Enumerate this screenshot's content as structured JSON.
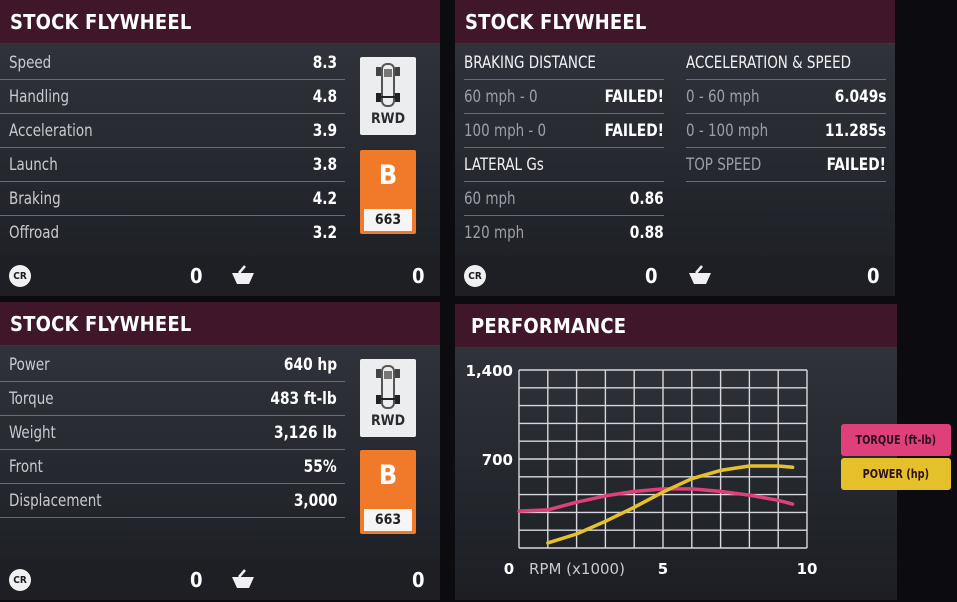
{
  "colors": {
    "header_bg": "#40162b",
    "class_orange": "#f07a2a",
    "torque_pink": "#e0407a",
    "power_yellow": "#e6c02a"
  },
  "panel_stats": {
    "title": "STOCK FLYWHEEL",
    "rows": [
      {
        "label": "Speed",
        "value": "8.3"
      },
      {
        "label": "Handling",
        "value": "4.8"
      },
      {
        "label": "Acceleration",
        "value": "3.9"
      },
      {
        "label": "Launch",
        "value": "3.8"
      },
      {
        "label": "Braking",
        "value": "4.2"
      },
      {
        "label": "Offroad",
        "value": "3.2"
      }
    ],
    "drivetrain": "RWD",
    "class_letter": "B",
    "class_pi": "663",
    "cr_icon_text": "CR",
    "cr_value": "0",
    "basket_value": "0"
  },
  "panel_tests": {
    "title": "STOCK FLYWHEEL",
    "braking_heading": "BRAKING DISTANCE",
    "braking_rows": [
      {
        "label": "60 mph - 0",
        "value": "FAILED!"
      },
      {
        "label": "100 mph - 0",
        "value": "FAILED!"
      }
    ],
    "lateral_heading": "LATERAL Gs",
    "lateral_rows": [
      {
        "label": "60 mph",
        "value": "0.86"
      },
      {
        "label": "120 mph",
        "value": "0.88"
      }
    ],
    "accel_heading": "ACCELERATION & SPEED",
    "accel_rows": [
      {
        "label": "0 - 60 mph",
        "value": "6.049s"
      },
      {
        "label": "0 - 100 mph",
        "value": "11.285s"
      },
      {
        "label": "TOP SPEED",
        "value": "FAILED!"
      }
    ],
    "cr_icon_text": "CR",
    "cr_value": "0",
    "basket_value": "0"
  },
  "panel_specs": {
    "title": "STOCK FLYWHEEL",
    "rows": [
      {
        "label": "Power",
        "value": "640 hp"
      },
      {
        "label": "Torque",
        "value": "483 ft-lb"
      },
      {
        "label": "Weight",
        "value": "3,126 lb"
      },
      {
        "label": "Front",
        "value": "55%"
      },
      {
        "label": "Displacement",
        "value": "3,000"
      }
    ],
    "drivetrain": "RWD",
    "class_letter": "B",
    "class_pi": "663",
    "cr_icon_text": "CR",
    "cr_value": "0",
    "basket_value": "0"
  },
  "panel_performance": {
    "title": "PERFORMANCE",
    "legend_torque": "TORQUE (ft-lb)",
    "legend_power": "POWER (hp)"
  },
  "chart_data": {
    "type": "line",
    "xlabel": "RPM (x1000)",
    "ylabel": "",
    "xlim": [
      0,
      10
    ],
    "ylim": [
      0,
      1400
    ],
    "x_ticks": [
      "0",
      "5",
      "10"
    ],
    "y_ticks": [
      "700",
      "1,400"
    ],
    "grid": true,
    "legend_position": "right",
    "series": [
      {
        "name": "TORQUE (ft-lb)",
        "color": "#e0407a",
        "points": [
          [
            0,
            290
          ],
          [
            1,
            300
          ],
          [
            2,
            360
          ],
          [
            3,
            410
          ],
          [
            4,
            445
          ],
          [
            5,
            465
          ],
          [
            6,
            465
          ],
          [
            7,
            445
          ],
          [
            8,
            415
          ],
          [
            9,
            375
          ],
          [
            9.5,
            345
          ]
        ]
      },
      {
        "name": "POWER (hp)",
        "color": "#e6c02a",
        "points": [
          [
            1,
            40
          ],
          [
            2,
            110
          ],
          [
            3,
            210
          ],
          [
            4,
            320
          ],
          [
            5,
            440
          ],
          [
            6,
            545
          ],
          [
            7,
            610
          ],
          [
            8,
            645
          ],
          [
            9,
            645
          ],
          [
            9.5,
            635
          ]
        ]
      }
    ]
  }
}
